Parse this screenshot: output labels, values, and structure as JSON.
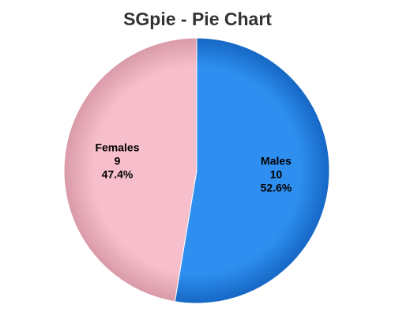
{
  "chart_data": {
    "type": "pie",
    "title": "SGpie - Pie Chart",
    "slices": [
      {
        "label": "Males",
        "value": 10,
        "percent": "52.6%",
        "color": "#2e8ff0",
        "color_dark": "#1667c4"
      },
      {
        "label": "Females",
        "value": 9,
        "percent": "47.4%",
        "color": "#f7bfcb",
        "color_dark": "#d99aa8"
      }
    ],
    "start_angle_deg": 0,
    "direction": "clockwise",
    "slice_edge_color": "#ffffff",
    "legend": "none"
  }
}
